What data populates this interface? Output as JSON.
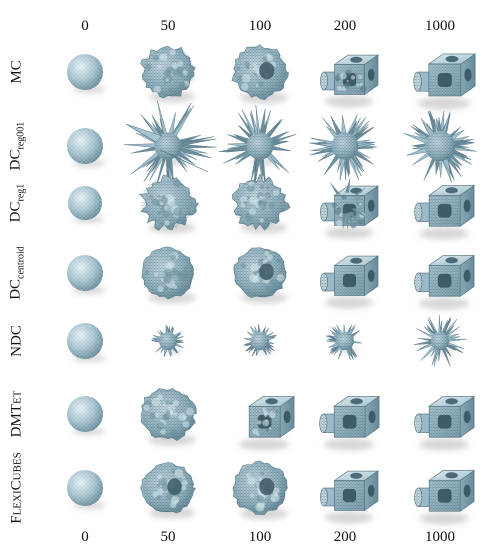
{
  "columns": [
    "0",
    "50",
    "100",
    "200",
    "1000"
  ],
  "rows": [
    {
      "label_main": "MC",
      "label_sub": "",
      "kind": "mc",
      "smallcaps": false
    },
    {
      "label_main": "DC",
      "label_sub": "reg001",
      "kind": "dcr001",
      "smallcaps": false
    },
    {
      "label_main": "DC",
      "label_sub": "reg1",
      "kind": "dcr1",
      "smallcaps": false
    },
    {
      "label_main": "DC",
      "label_sub": "centroid",
      "kind": "dcc",
      "smallcaps": false
    },
    {
      "label_main": "NDC",
      "label_sub": "",
      "kind": "ndc",
      "smallcaps": false
    },
    {
      "label_main": "DMTet",
      "label_sub": "",
      "kind": "dmtet",
      "smallcaps": true
    },
    {
      "label_main": "FlexiCubes",
      "label_sub": "",
      "kind": "flexi",
      "smallcaps": true
    }
  ],
  "colors": {
    "mesh": "#93b4c2",
    "mesh_light": "#c6dbe3",
    "mesh_dark": "#5d7f8e",
    "shadow": "#d9d9d9"
  }
}
